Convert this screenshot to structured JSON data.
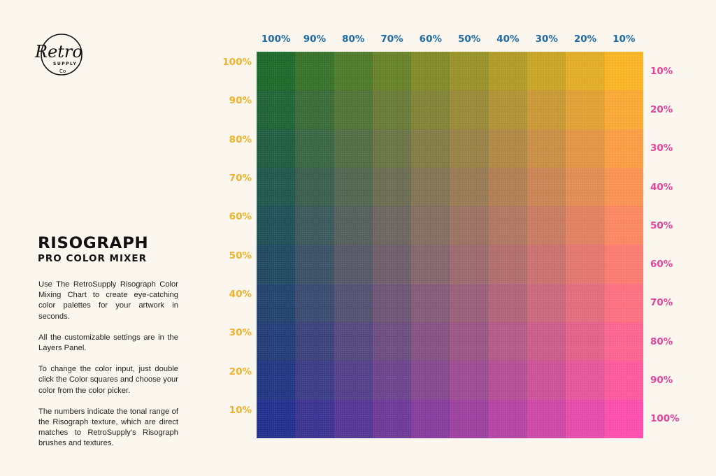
{
  "brand": {
    "logo_text": "Retro",
    "logo_subtext": "SUPPLY",
    "logo_mark": "Co"
  },
  "title": {
    "main": "RISOGRAPH",
    "sub": "PRO COLOR MIXER"
  },
  "description": [
    "Use The RetroSupply Risograph Color Mixing Chart to create eye-catching color palettes for your artwork in seconds.",
    "All the customizable settings are in the Layers Panel.",
    "To change the color input, just double click the Color squares and choose your color from the color picker.",
    "The numbers indicate the tonal range of the Risograph texture, which are direct matches to RetroSupply's Risograph brushes and textures."
  ],
  "colors": {
    "background": "#fbf6ee",
    "top_label": "#1f6aa6",
    "left_label": "#f0b22b",
    "right_label": "#e4459a",
    "ink_green": "#1f6b2c",
    "ink_yellow": "#fbb526",
    "ink_blue": "#24318f",
    "ink_pink": "#ff4fae"
  },
  "chart_data": {
    "type": "heatmap",
    "title": "Risograph Pro Color Mixer",
    "description": "10x10 color mixing grid blending four risograph inks: green (top-left), yellow (top-right), blue (bottom-left), pink (bottom-right).",
    "top_axis": {
      "label_color": "#1f6aa6",
      "ticks": [
        "100%",
        "90%",
        "80%",
        "70%",
        "60%",
        "50%",
        "40%",
        "30%",
        "20%",
        "10%"
      ]
    },
    "left_axis": {
      "label_color": "#f0b22b",
      "ticks": [
        "100%",
        "90%",
        "80%",
        "70%",
        "60%",
        "50%",
        "40%",
        "30%",
        "20%",
        "10%"
      ]
    },
    "right_axis": {
      "label_color": "#e4459a",
      "ticks": [
        "10%",
        "20%",
        "30%",
        "40%",
        "50%",
        "60%",
        "70%",
        "80%",
        "90%",
        "100%"
      ]
    },
    "corner_colors": {
      "top_left": "#1f6b2c",
      "top_right": "#fbb526",
      "bottom_left": "#24318f",
      "bottom_right": "#ff4fae"
    },
    "rows": 10,
    "cols": 10
  }
}
